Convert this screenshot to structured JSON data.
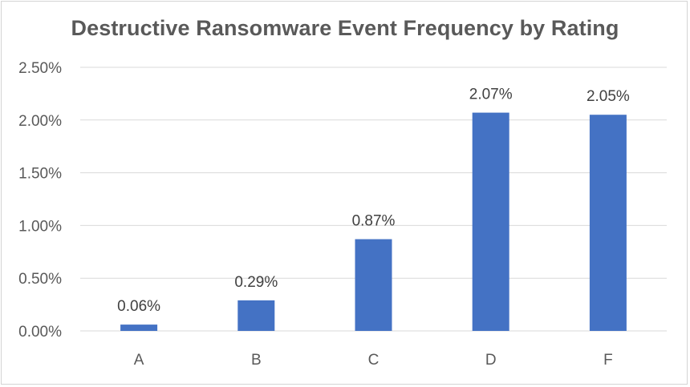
{
  "chart_data": {
    "type": "bar",
    "title": "Destructive Ransomware Event Frequency by Rating",
    "categories": [
      "A",
      "B",
      "C",
      "D",
      "F"
    ],
    "values": [
      0.06,
      0.29,
      0.87,
      2.07,
      2.05
    ],
    "data_labels": [
      "0.06%",
      "0.29%",
      "0.87%",
      "2.07%",
      "2.05%"
    ],
    "unit": "%",
    "ylim": [
      0,
      2.5
    ],
    "yticks": [
      0,
      0.5,
      1.0,
      1.5,
      2.0,
      2.5
    ],
    "ytick_labels": [
      "0.00%",
      "0.50%",
      "1.00%",
      "1.50%",
      "2.00%",
      "2.50%"
    ],
    "xlabel": "",
    "ylabel": "",
    "grid": true,
    "legend": "none",
    "colors": {
      "bar": "#4472c4",
      "gridline": "#d9d9d9",
      "axis_text": "#595959",
      "label_text": "#404040"
    }
  }
}
